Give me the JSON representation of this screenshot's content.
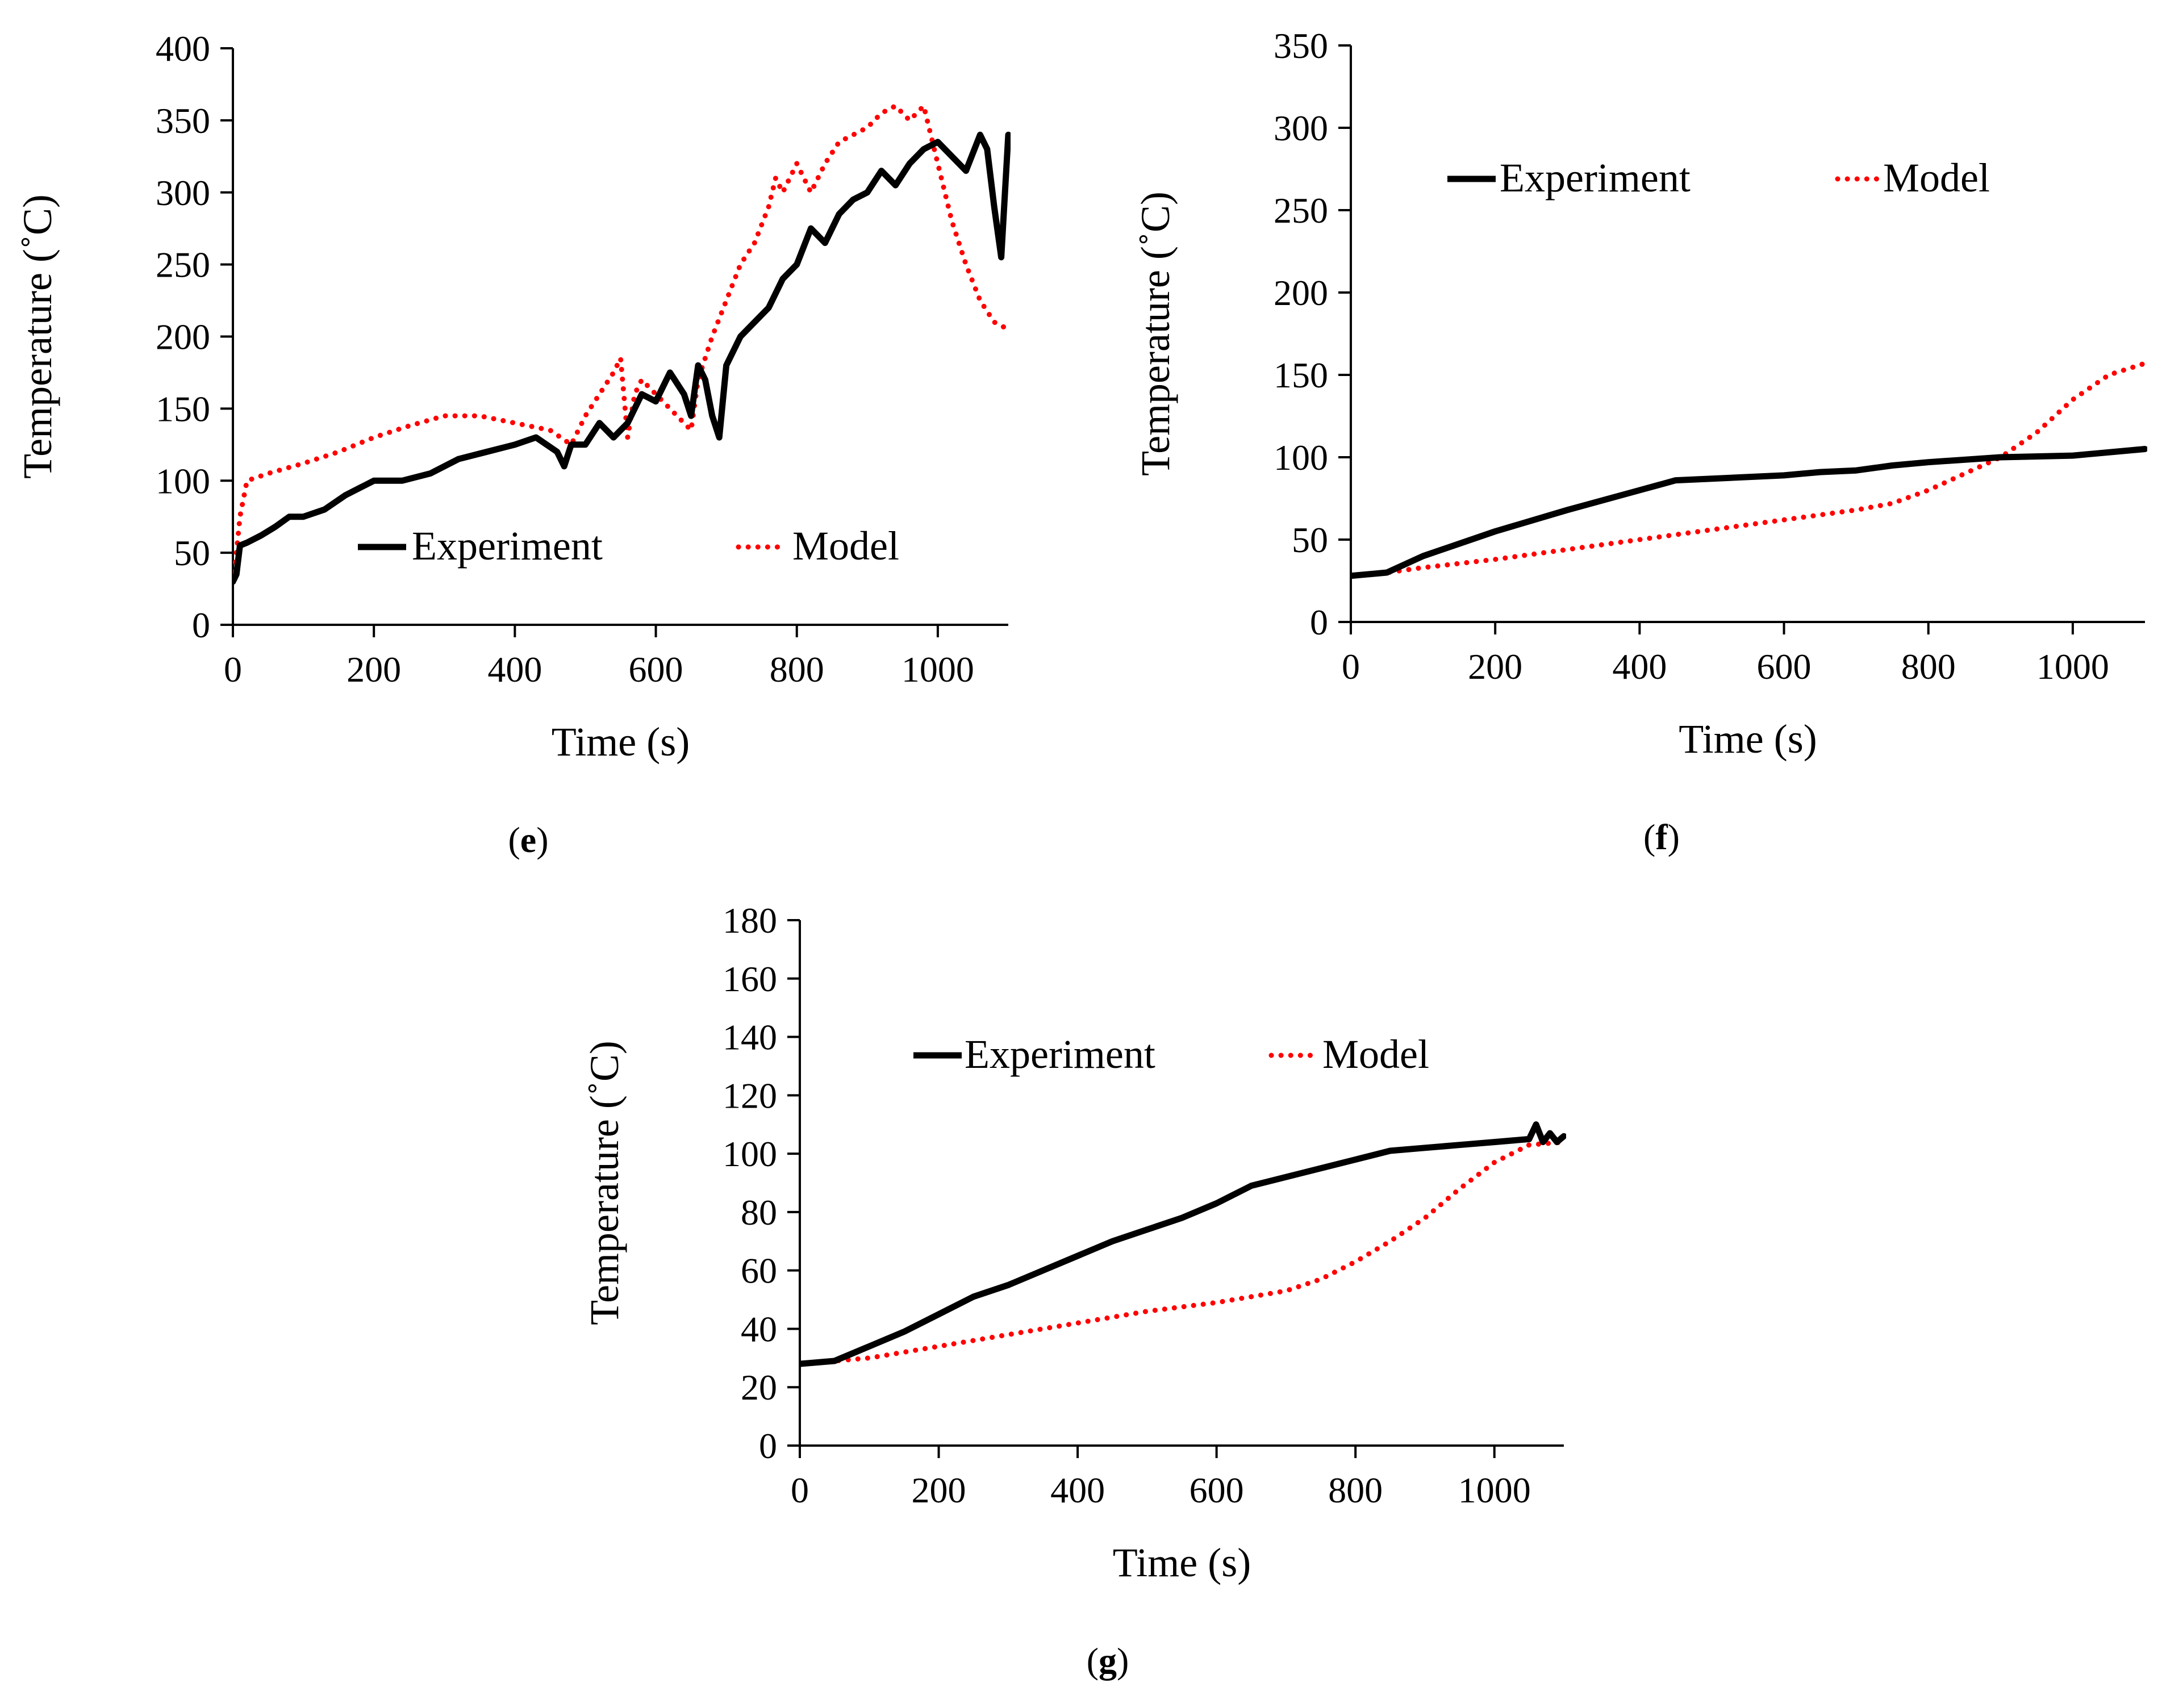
{
  "chart_data": [
    {
      "id": "e",
      "type": "line",
      "panel_label": "e",
      "xlabel": "Time (s)",
      "ylabel": "Temperature (˚C)",
      "xlim": [
        0,
        1100
      ],
      "ylim": [
        0,
        400
      ],
      "xticks": [
        0,
        200,
        400,
        600,
        800,
        1000
      ],
      "yticks": [
        0,
        50,
        100,
        150,
        200,
        250,
        300,
        350,
        400
      ],
      "legend_position": "lower-center",
      "series": [
        {
          "name": "Experiment",
          "style": "solid",
          "color": "#000000",
          "x": [
            0,
            5,
            10,
            20,
            40,
            60,
            80,
            100,
            130,
            160,
            200,
            240,
            280,
            320,
            360,
            400,
            430,
            460,
            470,
            480,
            500,
            520,
            540,
            560,
            580,
            600,
            620,
            640,
            650,
            660,
            670,
            680,
            690,
            700,
            720,
            740,
            760,
            780,
            800,
            820,
            840,
            860,
            880,
            900,
            920,
            940,
            960,
            980,
            1000,
            1020,
            1040,
            1060,
            1070,
            1080,
            1090,
            1100
          ],
          "y": [
            30,
            35,
            55,
            57,
            62,
            68,
            75,
            75,
            80,
            90,
            100,
            100,
            105,
            115,
            120,
            125,
            130,
            120,
            110,
            125,
            125,
            140,
            130,
            140,
            160,
            155,
            175,
            160,
            145,
            180,
            170,
            145,
            130,
            180,
            200,
            210,
            220,
            240,
            250,
            275,
            265,
            285,
            295,
            300,
            315,
            305,
            320,
            330,
            335,
            325,
            315,
            340,
            330,
            290,
            255,
            340
          ]
        },
        {
          "name": "Model",
          "style": "dotted",
          "color": "#ff0000",
          "x": [
            0,
            5,
            10,
            20,
            50,
            100,
            150,
            200,
            250,
            300,
            350,
            400,
            450,
            480,
            500,
            520,
            540,
            550,
            560,
            570,
            580,
            600,
            620,
            640,
            650,
            660,
            680,
            700,
            720,
            740,
            760,
            770,
            780,
            800,
            820,
            840,
            860,
            880,
            900,
            920,
            940,
            960,
            980,
            1000,
            1020,
            1040,
            1060,
            1080,
            1100
          ],
          "y": [
            30,
            50,
            75,
            100,
            105,
            112,
            120,
            130,
            138,
            145,
            145,
            140,
            135,
            125,
            145,
            160,
            175,
            185,
            130,
            160,
            170,
            160,
            150,
            140,
            135,
            170,
            200,
            225,
            250,
            265,
            290,
            310,
            300,
            320,
            300,
            320,
            335,
            340,
            345,
            355,
            360,
            350,
            360,
            320,
            280,
            250,
            225,
            210,
            205
          ]
        }
      ]
    },
    {
      "id": "f",
      "type": "line",
      "panel_label": "f",
      "xlabel": "Time (s)",
      "ylabel": "Temperature (˚C)",
      "xlim": [
        0,
        1100
      ],
      "ylim": [
        0,
        350
      ],
      "xticks": [
        0,
        200,
        400,
        600,
        800,
        1000
      ],
      "yticks": [
        0,
        50,
        100,
        150,
        200,
        250,
        300,
        350
      ],
      "legend_position": "top-left",
      "series": [
        {
          "name": "Experiment",
          "style": "solid",
          "color": "#000000",
          "x": [
            0,
            50,
            100,
            200,
            300,
            400,
            450,
            500,
            600,
            650,
            700,
            750,
            800,
            900,
            1000,
            1100
          ],
          "y": [
            28,
            30,
            40,
            55,
            68,
            80,
            86,
            87,
            89,
            91,
            92,
            95,
            97,
            100,
            101,
            105
          ]
        },
        {
          "name": "Model",
          "style": "dotted",
          "color": "#ff0000",
          "x": [
            0,
            50,
            100,
            200,
            300,
            400,
            500,
            600,
            700,
            750,
            800,
            850,
            900,
            950,
            1000,
            1050,
            1100
          ],
          "y": [
            28,
            30,
            33,
            38,
            44,
            50,
            56,
            62,
            68,
            72,
            80,
            90,
            100,
            115,
            135,
            150,
            157
          ]
        }
      ]
    },
    {
      "id": "g",
      "type": "line",
      "panel_label": "g",
      "xlabel": "Time (s)",
      "ylabel": "Temperature (˚C)",
      "xlim": [
        0,
        1100
      ],
      "ylim": [
        0,
        180
      ],
      "xticks": [
        0,
        200,
        400,
        600,
        800,
        1000
      ],
      "yticks": [
        0,
        20,
        40,
        60,
        80,
        100,
        120,
        140,
        160,
        180
      ],
      "legend_position": "top-center",
      "series": [
        {
          "name": "Experiment",
          "style": "solid",
          "color": "#000000",
          "x": [
            0,
            50,
            100,
            150,
            200,
            250,
            300,
            350,
            400,
            450,
            500,
            550,
            600,
            650,
            700,
            750,
            800,
            850,
            900,
            950,
            1000,
            1050,
            1060,
            1070,
            1080,
            1090,
            1100
          ],
          "y": [
            28,
            29,
            34,
            39,
            45,
            51,
            55,
            60,
            65,
            70,
            74,
            78,
            83,
            89,
            92,
            95,
            98,
            101,
            102,
            103,
            104,
            105,
            110,
            104,
            107,
            104,
            106
          ]
        },
        {
          "name": "Model",
          "style": "dotted",
          "color": "#ff0000",
          "x": [
            0,
            50,
            100,
            200,
            300,
            400,
            500,
            600,
            700,
            750,
            800,
            850,
            900,
            950,
            1000,
            1050,
            1100
          ],
          "y": [
            28,
            29,
            30,
            34,
            38,
            42,
            46,
            49,
            53,
            57,
            63,
            70,
            78,
            88,
            97,
            103,
            104
          ]
        }
      ]
    }
  ]
}
